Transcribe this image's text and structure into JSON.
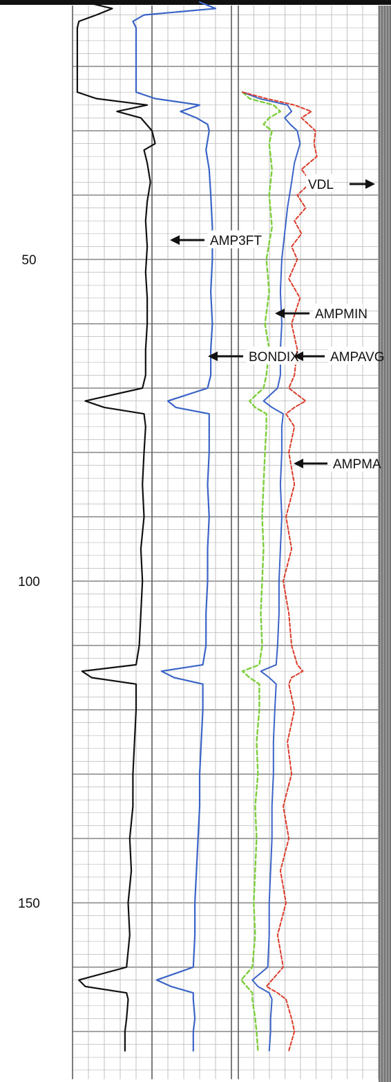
{
  "chart_data": {
    "type": "line",
    "title": "",
    "depth_axis": {
      "tick_labels": [
        "50",
        "100",
        "150"
      ],
      "ticks": [
        50,
        100,
        150
      ],
      "range": [
        10,
        173
      ],
      "direction": "downward"
    },
    "grid": true,
    "colors": {
      "AMP3FT": "#111111",
      "BONDIX": "#3a63c8",
      "AMPMIN": "#7ccf3a",
      "AMPAVG": "#3a63c8",
      "AMPMAX": "#dd3a2a",
      "VDL_strip": "#8a8a8a"
    },
    "series": [
      {
        "name": "AMP3FT",
        "track": 1,
        "depth": [
          10,
          11,
          12,
          13,
          14,
          24,
          25,
          26,
          27,
          28,
          30,
          32,
          33,
          35,
          38,
          41,
          44,
          48,
          52,
          56,
          60,
          64,
          68,
          70,
          72,
          73,
          74,
          76,
          80,
          85,
          90,
          95,
          100,
          105,
          110,
          113,
          114,
          115,
          116,
          120,
          125,
          130,
          135,
          140,
          145,
          150,
          155,
          160,
          162,
          163,
          164,
          165,
          168,
          170,
          173
        ],
        "value": [
          8,
          25,
          15,
          4,
          3,
          3,
          15,
          47,
          28,
          43,
          50,
          52,
          45,
          47,
          49,
          47,
          46,
          47,
          46,
          47,
          47,
          46,
          46,
          44,
          8,
          20,
          45,
          46,
          45,
          44,
          45,
          43,
          44,
          43,
          42,
          40,
          6,
          12,
          40,
          40,
          39,
          38,
          38,
          36,
          37,
          35,
          36,
          34,
          4,
          8,
          34,
          35,
          34,
          33,
          33
        ]
      },
      {
        "name": "BONDIX",
        "track": 1,
        "depth": [
          10,
          11,
          12,
          13,
          14,
          24,
          25,
          26,
          27,
          28,
          29,
          30,
          33,
          36,
          40,
          45,
          50,
          55,
          60,
          64,
          68,
          70,
          72,
          73,
          74,
          76,
          80,
          85,
          90,
          95,
          100,
          105,
          110,
          113,
          114,
          115,
          116,
          120,
          125,
          130,
          135,
          140,
          145,
          150,
          155,
          160,
          162,
          163,
          164,
          165,
          168,
          170,
          173
        ],
        "value": [
          80,
          90,
          45,
          38,
          40,
          40,
          52,
          80,
          68,
          78,
          85,
          86,
          84,
          86,
          87,
          88,
          88,
          87,
          88,
          87,
          87,
          85,
          60,
          65,
          86,
          86,
          86,
          85,
          86,
          85,
          85,
          84,
          84,
          82,
          56,
          64,
          82,
          82,
          81,
          80,
          80,
          79,
          78,
          77,
          77,
          76,
          53,
          62,
          76,
          76,
          77,
          76,
          76
        ]
      },
      {
        "name": "AMPMIN",
        "track": 2,
        "depth": [
          24,
          25,
          26,
          27,
          28,
          29,
          30,
          32,
          36,
          40,
          45,
          50,
          55,
          60,
          64,
          68,
          70,
          72,
          73,
          74,
          76,
          80,
          85,
          90,
          95,
          100,
          105,
          110,
          113,
          114,
          115,
          116,
          120,
          125,
          130,
          135,
          140,
          145,
          150,
          155,
          160,
          162,
          163,
          164,
          165,
          168,
          170,
          173
        ],
        "value": [
          3,
          8,
          25,
          30,
          22,
          18,
          24,
          22,
          24,
          22,
          24,
          20,
          22,
          19,
          22,
          20,
          18,
          8,
          12,
          20,
          20,
          19,
          18,
          17,
          18,
          17,
          16,
          17,
          15,
          3,
          8,
          15,
          15,
          13,
          14,
          12,
          13,
          12,
          11,
          12,
          10,
          2,
          6,
          10,
          10,
          12,
          13,
          14
        ]
      },
      {
        "name": "AMPAVG",
        "track": 2,
        "depth": [
          24,
          25,
          26,
          27,
          28,
          29,
          30,
          32,
          35,
          38,
          42,
          46,
          50,
          55,
          60,
          64,
          68,
          70,
          72,
          73,
          74,
          76,
          80,
          85,
          90,
          95,
          100,
          105,
          110,
          113,
          114,
          115,
          116,
          120,
          125,
          130,
          135,
          140,
          145,
          150,
          155,
          160,
          162,
          163,
          164,
          165,
          168,
          170,
          173
        ],
        "value": [
          3,
          15,
          35,
          38,
          33,
          37,
          42,
          44,
          40,
          38,
          35,
          33,
          31,
          30,
          31,
          30,
          30,
          28,
          18,
          24,
          32,
          31,
          31,
          30,
          31,
          30,
          29,
          29,
          28,
          27,
          16,
          22,
          27,
          26,
          25,
          25,
          24,
          24,
          23,
          22,
          22,
          21,
          10,
          14,
          22,
          24,
          23,
          23,
          22
        ]
      },
      {
        "name": "AMPMAX",
        "track": 2,
        "depth": [
          24,
          25,
          26,
          27,
          28,
          30,
          32,
          34,
          36,
          38,
          40,
          42,
          44,
          46,
          48,
          50,
          53,
          56,
          60,
          64,
          68,
          70,
          72,
          73,
          74,
          76,
          80,
          85,
          90,
          95,
          100,
          105,
          110,
          113,
          114,
          115,
          116,
          120,
          125,
          130,
          135,
          140,
          145,
          150,
          155,
          160,
          162,
          163,
          164,
          165,
          168,
          170,
          173
        ],
        "value": [
          3,
          20,
          40,
          52,
          45,
          55,
          54,
          56,
          45,
          52,
          42,
          48,
          40,
          45,
          38,
          42,
          36,
          44,
          38,
          42,
          40,
          36,
          48,
          40,
          34,
          40,
          36,
          40,
          34,
          38,
          32,
          36,
          38,
          42,
          46,
          38,
          36,
          40,
          35,
          38,
          32,
          36,
          30,
          34,
          28,
          32,
          24,
          20,
          28,
          34,
          38,
          40,
          36
        ]
      }
    ],
    "annotations": [
      {
        "text": "VDL",
        "arrow": "right"
      },
      {
        "text": "AMP3FT",
        "arrow": "left"
      },
      {
        "text": "AMPMIN",
        "arrow": "left"
      },
      {
        "text": "BONDIX",
        "arrow": "left"
      },
      {
        "text": "AMPAVG",
        "arrow": "left"
      },
      {
        "text": "AMPMA",
        "arrow": "left"
      }
    ]
  }
}
